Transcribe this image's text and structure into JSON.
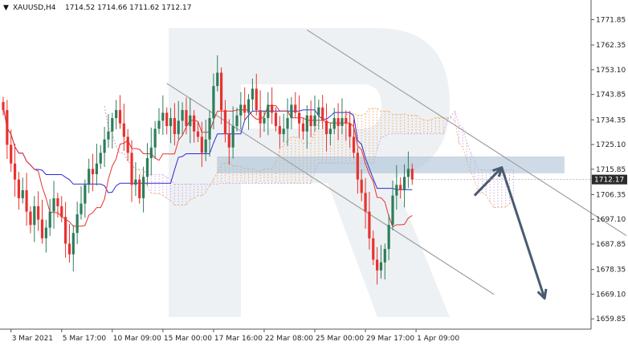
{
  "header": {
    "symbol": "XAUUSD,H4",
    "ohlc": "1714.52 1714.66 1711.62 1712.17"
  },
  "current_price_label": "1712.17",
  "colors": {
    "bull": "#2e7d5b",
    "bear": "#e8322f",
    "tenkan": "#e8322f",
    "kijun": "#2b2bd6",
    "cloud_a": "#f4a460",
    "cloud_b": "#c9a0dc",
    "zone": "#a7bfd4",
    "arrow": "#4a5a70",
    "channel": "#a0a0a0",
    "price_tag_bg": "#2b2b2b"
  },
  "chart_data": {
    "type": "candlestick",
    "symbol": "XAUUSD",
    "timeframe": "H4",
    "ylim": [
      1656,
      1778
    ],
    "y_ticks": [
      1771.85,
      1762.35,
      1753.1,
      1743.85,
      1734.35,
      1725.1,
      1715.85,
      1706.35,
      1697.1,
      1687.85,
      1678.35,
      1669.1,
      1659.85
    ],
    "x_labels": [
      {
        "label": "3 Mar 2021",
        "bar": 2
      },
      {
        "label": "5 Mar 17:00",
        "bar": 15
      },
      {
        "label": "10 Mar 09:00",
        "bar": 28
      },
      {
        "label": "15 Mar 00:00",
        "bar": 41
      },
      {
        "label": "17 Mar 16:00",
        "bar": 54
      },
      {
        "label": "22 Mar 08:00",
        "bar": 67
      },
      {
        "label": "25 Mar 00:00",
        "bar": 80
      },
      {
        "label": "29 Mar 17:00",
        "bar": 93
      },
      {
        "label": "1 Apr 09:00",
        "bar": 106
      }
    ],
    "closes": [
      1738,
      1725,
      1718,
      1712,
      1705,
      1708,
      1700,
      1695,
      1702,
      1697,
      1690,
      1694,
      1700,
      1705,
      1702,
      1698,
      1688,
      1684,
      1692,
      1699,
      1703,
      1710,
      1716,
      1714,
      1718,
      1722,
      1727,
      1730,
      1735,
      1738,
      1733,
      1728,
      1722,
      1710,
      1712,
      1705,
      1713,
      1720,
      1724,
      1731,
      1734,
      1737,
      1732,
      1735,
      1729,
      1734,
      1738,
      1732,
      1736,
      1730,
      1728,
      1722,
      1727,
      1735,
      1747,
      1752,
      1738,
      1729,
      1724,
      1732,
      1736,
      1740,
      1737,
      1742,
      1746,
      1738,
      1733,
      1735,
      1740,
      1737,
      1732,
      1729,
      1731,
      1735,
      1740,
      1737,
      1733,
      1730,
      1736,
      1732,
      1736,
      1739,
      1734,
      1729,
      1731,
      1735,
      1732,
      1735,
      1733,
      1728,
      1722,
      1712,
      1707,
      1700,
      1690,
      1682,
      1678,
      1681,
      1686,
      1695,
      1706,
      1710,
      1708,
      1713,
      1716,
      1712
    ],
    "candle_count": 106,
    "annotations": {
      "resistance_zone": {
        "bar_start": 55,
        "bar_end": 144,
        "price_low": 1714.5,
        "price_high": 1720.5
      },
      "channel_upper": [
        {
          "bar": 78,
          "price": 1768
        },
        {
          "bar": 160,
          "price": 1691
        }
      ],
      "channel_lower": [
        {
          "bar": 42,
          "price": 1748
        },
        {
          "bar": 126,
          "price": 1669
        }
      ],
      "arrow_path": [
        {
          "bar": 121,
          "price": 1706
        },
        {
          "bar": 128,
          "price": 1716.5
        },
        {
          "bar": 139,
          "price": 1667.5
        }
      ]
    },
    "ichimoku": "Ichimoku Kinko Hyo (Tenkan-sen, Kijun-sen, Kumo cloud)"
  }
}
